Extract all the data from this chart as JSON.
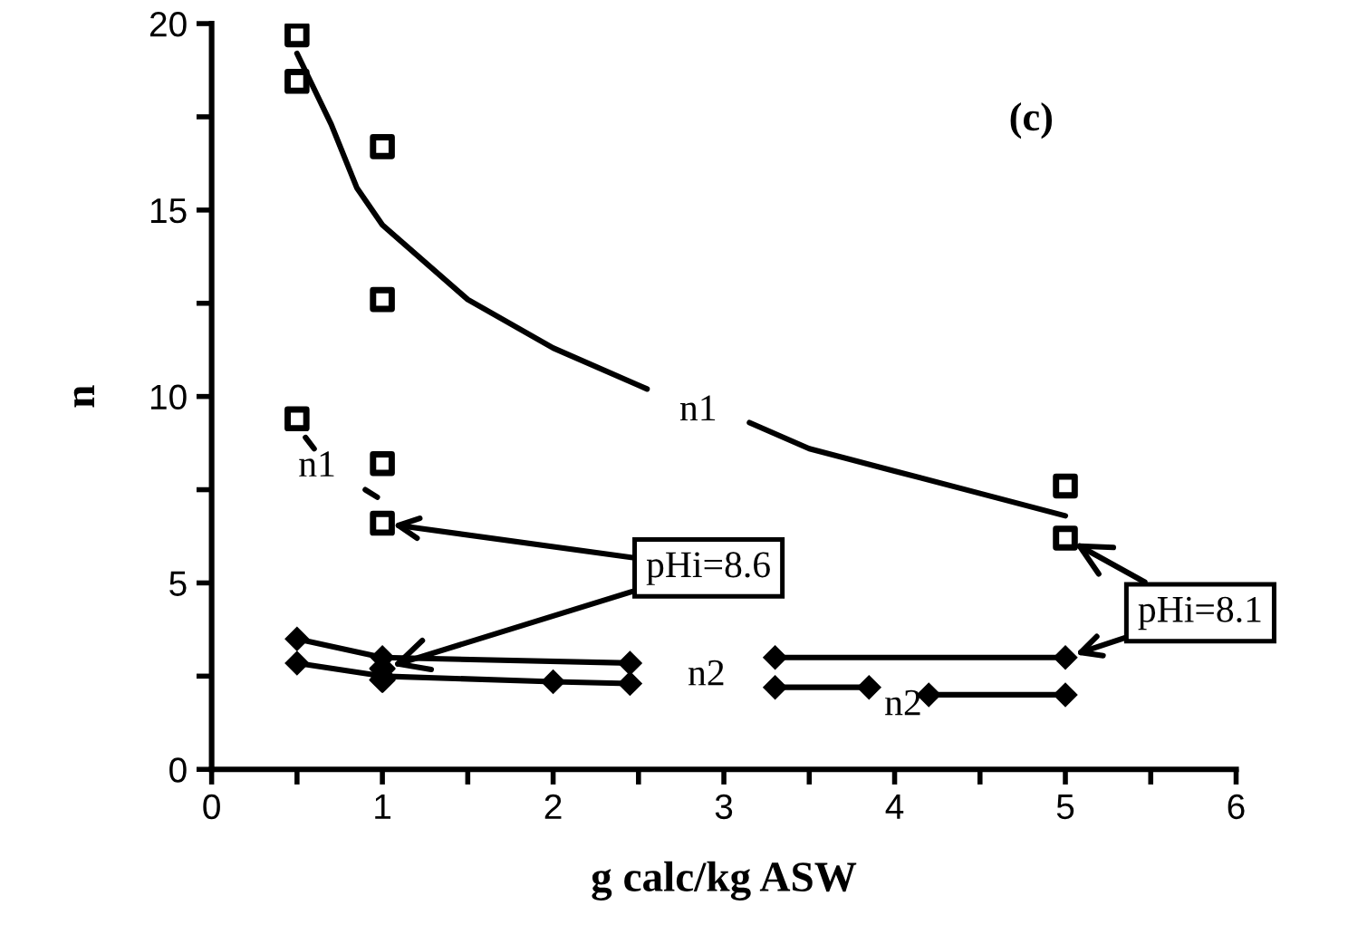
{
  "chart_data": {
    "type": "scatter",
    "xlabel": "g calc/kg ASW",
    "ylabel": "n",
    "xlim": [
      0,
      6
    ],
    "ylim": [
      0,
      20
    ],
    "xticks": [
      0,
      {
        "value": 0.5,
        "label": null
      },
      1,
      {
        "value": 1.5,
        "label": null
      },
      2,
      {
        "value": 2.5,
        "label": null
      },
      3,
      {
        "value": 3.5,
        "label": null
      },
      4,
      {
        "value": 4.5,
        "label": null
      },
      5,
      {
        "value": 5.5,
        "label": null
      },
      6
    ],
    "yticks": [
      0,
      {
        "value": 2.5,
        "label": null
      },
      5,
      {
        "value": 7.5,
        "label": null
      },
      10,
      {
        "value": 12.5,
        "label": null
      },
      15,
      {
        "value": 17.5,
        "label": null
      },
      20
    ],
    "grid": false,
    "legend": false,
    "series": [
      {
        "marker": "square",
        "color": "#000000",
        "x": [
          0.5,
          0.5,
          1,
          1,
          5,
          5
        ],
        "values": [
          19.7,
          18.45,
          16.7,
          12.6,
          7.6,
          6.2
        ]
      },
      {
        "marker": "square",
        "color": "#000000",
        "x": [
          0.5,
          1,
          1
        ],
        "values": [
          9.4,
          8.2,
          6.6
        ]
      },
      {
        "type": "line",
        "marker": "none",
        "color": "#000000",
        "x": [
          0.5,
          0.7,
          0.85,
          1,
          1.5,
          2,
          2.5,
          2.55,
          null,
          3.15,
          3.5,
          4,
          4.5,
          5
        ],
        "values": [
          19.2,
          17.3,
          15.6,
          14.6,
          12.6,
          11.3,
          10.3,
          10.2,
          null,
          9.3,
          8.6,
          8.0,
          7.4,
          6.8
        ]
      },
      {
        "type": "line",
        "marker": "none",
        "color": "#000000",
        "x": [
          0.55,
          0.6,
          null,
          0.9,
          0.97
        ],
        "values": [
          8.9,
          8.6,
          null,
          7.5,
          7.3
        ]
      },
      {
        "type": "line",
        "marker": "diamond",
        "color": "#000000",
        "x": [
          0.5,
          1,
          2.45,
          null,
          3.3,
          5
        ],
        "values": [
          3.5,
          3.0,
          2.85,
          null,
          3.0,
          3.0
        ]
      },
      {
        "type": "line",
        "marker": "diamond",
        "color": "#000000",
        "x": [
          0.5,
          1,
          2,
          2.45,
          null,
          3.3,
          3.85,
          null,
          4.2,
          5
        ],
        "values": [
          2.85,
          2.5,
          2.35,
          2.3,
          null,
          2.2,
          2.2,
          null,
          2.0,
          2.0
        ]
      },
      {
        "marker": "diamond",
        "color": "#000000",
        "x": [
          1,
          1
        ],
        "values": [
          2.7,
          2.4
        ]
      }
    ],
    "annotations": [
      "(c)",
      "n1",
      "n1",
      "n2",
      "n2",
      {
        "text": "pHi=8.6",
        "x": 1,
        "y": 2.7
      },
      {
        "text": "pHi=8.1",
        "x": 5,
        "y": 6.2
      }
    ]
  }
}
